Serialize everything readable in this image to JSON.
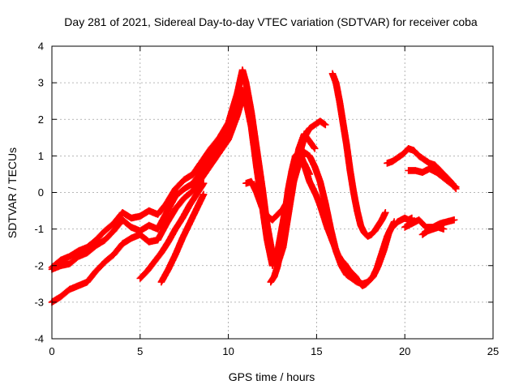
{
  "chart_data": {
    "type": "scatter",
    "title": "Day 281 of 2021, Sidereal Day-to-day VTEC variation (SDTVAR) for receiver coba",
    "xlabel": "GPS time / hours",
    "ylabel": "SDTVAR / TECUs",
    "xlim": [
      0,
      25
    ],
    "ylim": [
      -4,
      4
    ],
    "xticks": [
      0,
      5,
      10,
      15,
      20,
      25
    ],
    "yticks": [
      -4,
      -3,
      -2,
      -1,
      0,
      1,
      2,
      3,
      4
    ],
    "grid": true,
    "marker": "plus",
    "color": "#ff0000",
    "series": [
      {
        "x": [
          0.0,
          0.5,
          1.0,
          1.5,
          2.0,
          2.5,
          3.0,
          3.5,
          4.0,
          4.5,
          5.0,
          5.5,
          6.0,
          6.5,
          7.0,
          7.5,
          8.0,
          8.5,
          9.0,
          9.5,
          10.0,
          10.5,
          10.8,
          11.0,
          11.3,
          11.6,
          11.9,
          12.2,
          12.5,
          12.8,
          13.1,
          13.4,
          13.7,
          14.0,
          14.3,
          14.6,
          14.9,
          15.2,
          15.5
        ],
        "y": [
          -2.05,
          -1.85,
          -1.75,
          -1.6,
          -1.5,
          -1.3,
          -1.05,
          -0.85,
          -0.55,
          -0.7,
          -0.65,
          -0.5,
          -0.6,
          -0.3,
          0.1,
          0.35,
          0.5,
          0.85,
          1.2,
          1.5,
          1.9,
          2.7,
          3.35,
          3.0,
          2.2,
          1.2,
          0.2,
          -0.9,
          -1.7,
          -1.95,
          -1.5,
          -0.6,
          0.3,
          1.0,
          1.5,
          1.75,
          1.85,
          1.95,
          1.85
        ]
      },
      {
        "x": [
          0.0,
          0.5,
          1.0,
          1.5,
          2.0,
          2.5,
          3.0,
          3.5,
          4.0,
          4.5,
          5.0,
          5.5,
          6.0,
          6.5,
          7.0,
          7.5,
          8.0,
          8.5,
          9.0,
          9.5,
          10.0,
          10.5,
          10.8,
          11.0,
          11.3,
          11.6,
          11.9,
          12.2,
          12.5,
          12.8,
          13.1,
          13.4,
          13.7,
          14.0,
          14.3,
          14.6,
          14.9
        ],
        "y": [
          -2.1,
          -2.0,
          -1.95,
          -1.75,
          -1.65,
          -1.45,
          -1.3,
          -1.05,
          -0.75,
          -0.95,
          -1.05,
          -0.9,
          -1.0,
          -0.55,
          -0.1,
          0.1,
          0.25,
          0.6,
          0.95,
          1.3,
          1.6,
          2.3,
          2.8,
          2.6,
          1.9,
          0.9,
          -0.1,
          -1.1,
          -1.8,
          -1.85,
          -1.3,
          -0.4,
          0.5,
          1.2,
          1.6,
          1.4,
          1.2
        ]
      },
      {
        "x": [
          0.0,
          0.5,
          1.0,
          1.5,
          2.0,
          2.5,
          3.0,
          3.5,
          4.0,
          4.5,
          5.0,
          5.5,
          6.0,
          6.5,
          7.0,
          7.5,
          8.0,
          8.5,
          9.0,
          9.5,
          10.0,
          10.5,
          10.8,
          11.0,
          11.3,
          11.6,
          11.9,
          12.2,
          12.5,
          12.8,
          13.1,
          13.4,
          13.7,
          14.0,
          14.3,
          14.6
        ],
        "y": [
          -3.0,
          -2.85,
          -2.65,
          -2.55,
          -2.45,
          -2.15,
          -1.9,
          -1.7,
          -1.4,
          -1.25,
          -1.15,
          -1.35,
          -1.3,
          -0.85,
          -0.45,
          -0.15,
          0.05,
          0.4,
          0.75,
          1.1,
          1.45,
          2.1,
          2.6,
          2.5,
          1.8,
          0.7,
          -0.3,
          -1.3,
          -2.0,
          -1.6,
          -0.8,
          0.0,
          0.6,
          1.0,
          0.8,
          0.5
        ]
      },
      {
        "x": [
          5.0,
          5.4,
          5.8,
          6.2,
          6.6,
          7.0,
          7.4,
          7.8,
          8.2,
          8.6
        ],
        "y": [
          -2.35,
          -2.15,
          -1.9,
          -1.65,
          -1.35,
          -1.0,
          -0.7,
          -0.35,
          -0.05,
          0.25
        ]
      },
      {
        "x": [
          6.2,
          6.6,
          7.0,
          7.4,
          7.8,
          8.2,
          8.6
        ],
        "y": [
          -2.45,
          -2.1,
          -1.7,
          -1.25,
          -0.85,
          -0.45,
          -0.05
        ]
      },
      {
        "x": [
          12.4,
          12.6,
          12.8,
          13.0,
          13.2,
          13.4,
          13.6,
          13.8,
          14.0,
          14.2,
          14.4,
          14.6,
          14.8,
          15.0,
          15.2,
          15.4,
          15.6,
          15.8,
          16.0,
          16.2,
          16.4,
          16.6,
          16.8,
          17.0,
          17.2,
          17.4,
          17.6,
          17.8,
          18.0,
          18.2,
          18.4,
          18.6,
          18.8,
          19.0,
          19.2,
          19.4,
          19.6,
          19.8,
          20.0,
          20.2,
          20.4
        ],
        "y": [
          -2.45,
          -2.3,
          -2.0,
          -1.3,
          -0.6,
          0.1,
          0.6,
          1.0,
          1.1,
          0.9,
          0.6,
          0.3,
          0.1,
          -0.1,
          -0.35,
          -0.65,
          -0.95,
          -1.2,
          -1.45,
          -1.7,
          -1.85,
          -1.95,
          -2.1,
          -2.2,
          -2.3,
          -2.45,
          -2.55,
          -2.5,
          -2.4,
          -2.3,
          -2.1,
          -1.8,
          -1.5,
          -1.2,
          -1.0,
          -0.9,
          -0.8,
          -0.75,
          -0.7,
          -0.75,
          -0.7
        ]
      },
      {
        "x": [
          11.0,
          11.3,
          11.6,
          11.9,
          12.2,
          12.5,
          12.8,
          13.1,
          13.4,
          13.7,
          14.0,
          14.3,
          14.6,
          14.9,
          15.2,
          15.5,
          15.8,
          16.1,
          16.4,
          16.7,
          17.0,
          17.3,
          17.6,
          17.9,
          18.2,
          18.5,
          18.8,
          19.1,
          19.4
        ],
        "y": [
          0.25,
          0.3,
          0.0,
          -0.4,
          -0.65,
          -0.75,
          -0.6,
          -0.45,
          -0.2,
          0.3,
          0.8,
          1.1,
          1.0,
          0.7,
          0.3,
          -0.3,
          -1.0,
          -1.6,
          -2.0,
          -2.25,
          -2.35,
          -2.45,
          -2.5,
          -2.45,
          -2.3,
          -2.0,
          -1.6,
          -1.1,
          -0.8
        ]
      },
      {
        "x": [
          15.9,
          16.1,
          16.3,
          16.5,
          16.7,
          16.9,
          17.1,
          17.3,
          17.5,
          17.7,
          17.9,
          18.1,
          18.3,
          18.5,
          18.7,
          18.9
        ],
        "y": [
          3.25,
          3.0,
          2.5,
          1.9,
          1.3,
          0.6,
          0.0,
          -0.5,
          -0.9,
          -1.1,
          -1.2,
          -1.15,
          -1.05,
          -0.9,
          -0.75,
          -0.55
        ]
      },
      {
        "x": [
          19.0,
          19.3,
          19.6,
          19.9,
          20.2,
          20.5,
          20.8,
          21.1,
          21.4,
          21.7,
          22.0,
          22.3,
          22.6,
          22.9
        ],
        "y": [
          0.8,
          0.85,
          0.95,
          1.05,
          1.2,
          1.15,
          1.0,
          0.9,
          0.8,
          0.75,
          0.6,
          0.45,
          0.3,
          0.1
        ]
      },
      {
        "x": [
          20.2,
          20.6,
          21.0,
          21.4,
          21.8,
          22.2,
          22.6,
          22.9
        ],
        "y": [
          0.6,
          0.6,
          0.55,
          0.65,
          0.55,
          0.4,
          0.25,
          0.15
        ]
      },
      {
        "x": [
          20.0,
          20.4,
          20.8,
          21.2,
          21.6,
          22.0,
          22.4,
          22.8
        ],
        "y": [
          -0.95,
          -0.85,
          -0.75,
          -0.95,
          -0.95,
          -0.85,
          -0.8,
          -0.75
        ]
      },
      {
        "x": [
          21.0,
          21.3,
          21.6,
          21.9,
          22.2
        ],
        "y": [
          -1.15,
          -1.05,
          -1.0,
          -0.95,
          -1.0
        ]
      }
    ]
  }
}
